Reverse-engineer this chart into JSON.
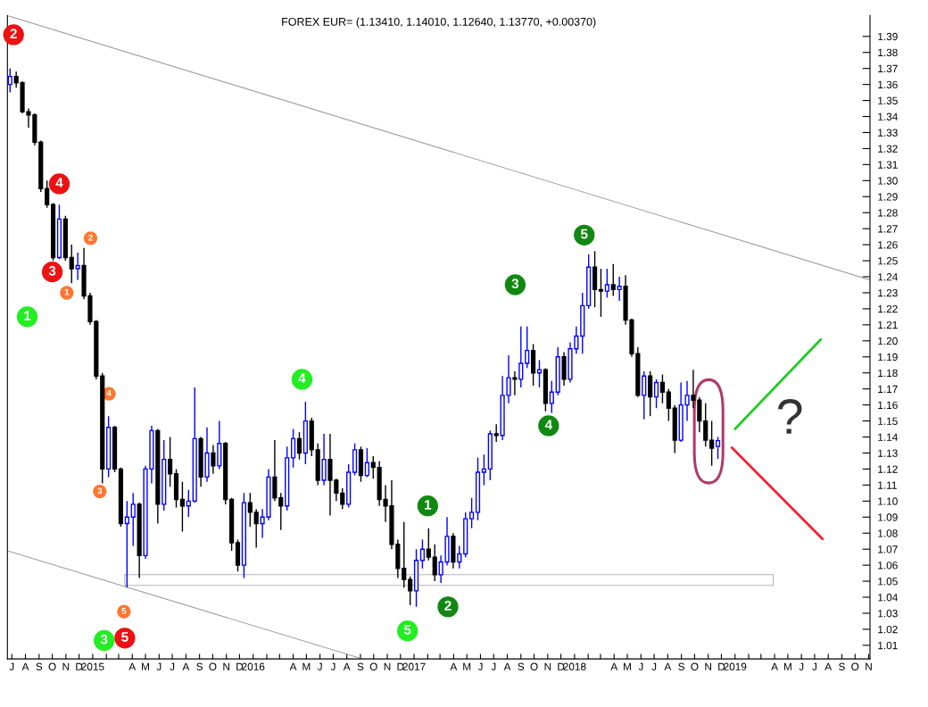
{
  "chart_data": {
    "type": "candlestick",
    "title": "FOREX EUR= (1.13410, 1.14010, 1.12640, 1.13770, +0.00370)",
    "x": [
      "2014-06-27",
      "2014-07-11",
      "2014-07-25",
      "2014-08-08",
      "2014-08-22",
      "2014-09-05",
      "2014-09-19",
      "2014-10-03",
      "2014-10-17",
      "2014-10-31",
      "2014-11-14",
      "2014-11-28",
      "2014-12-12",
      "2014-12-26",
      "2015-01-09",
      "2015-01-23",
      "2015-02-06",
      "2015-02-20",
      "2015-03-06",
      "2015-03-20",
      "2015-04-03",
      "2015-04-17",
      "2015-05-01",
      "2015-05-15",
      "2015-05-29",
      "2015-06-12",
      "2015-06-26",
      "2015-07-10",
      "2015-07-24",
      "2015-08-07",
      "2015-08-21",
      "2015-09-04",
      "2015-09-18",
      "2015-10-02",
      "2015-10-16",
      "2015-10-30",
      "2015-11-13",
      "2015-11-27",
      "2015-12-11",
      "2015-12-25",
      "2016-01-08",
      "2016-01-22",
      "2016-02-05",
      "2016-02-19",
      "2016-03-04",
      "2016-03-18",
      "2016-04-01",
      "2016-04-15",
      "2016-04-29",
      "2016-05-13",
      "2016-05-27",
      "2016-06-10",
      "2016-06-24",
      "2016-07-08",
      "2016-07-22",
      "2016-08-05",
      "2016-08-19",
      "2016-09-02",
      "2016-09-16",
      "2016-09-30",
      "2016-10-14",
      "2016-10-28",
      "2016-11-11",
      "2016-11-25",
      "2016-12-09",
      "2016-12-23",
      "2017-01-06",
      "2017-01-20",
      "2017-02-03",
      "2017-02-17",
      "2017-03-03",
      "2017-03-17",
      "2017-03-31",
      "2017-04-14",
      "2017-04-28",
      "2017-05-12",
      "2017-05-26",
      "2017-06-09",
      "2017-06-23",
      "2017-07-07",
      "2017-07-21",
      "2017-08-04",
      "2017-08-18",
      "2017-09-01",
      "2017-09-15",
      "2017-09-29",
      "2017-10-13",
      "2017-10-27",
      "2017-11-10",
      "2017-11-24",
      "2017-12-08",
      "2017-12-22",
      "2018-01-05",
      "2018-01-19",
      "2018-02-02",
      "2018-02-16",
      "2018-03-02",
      "2018-03-16",
      "2018-03-30",
      "2018-04-13",
      "2018-04-27",
      "2018-05-11",
      "2018-05-25",
      "2018-06-08",
      "2018-06-22",
      "2018-07-06",
      "2018-07-20",
      "2018-08-03",
      "2018-08-17",
      "2018-08-31",
      "2018-09-14",
      "2018-09-28",
      "2018-10-12",
      "2018-10-26",
      "2018-11-09",
      "2018-11-23"
    ],
    "ohlc": [
      [
        1.36,
        1.37,
        1.355,
        1.365
      ],
      [
        1.365,
        1.368,
        1.358,
        1.361
      ],
      [
        1.361,
        1.362,
        1.342,
        1.343
      ],
      [
        1.343,
        1.345,
        1.333,
        1.341
      ],
      [
        1.341,
        1.342,
        1.322,
        1.324
      ],
      [
        1.324,
        1.325,
        1.293,
        1.295
      ],
      [
        1.295,
        1.3,
        1.283,
        1.285
      ],
      [
        1.285,
        1.286,
        1.25,
        1.252
      ],
      [
        1.252,
        1.285,
        1.251,
        1.276
      ],
      [
        1.276,
        1.278,
        1.25,
        1.252
      ],
      [
        1.252,
        1.26,
        1.236,
        1.245
      ],
      [
        1.245,
        1.255,
        1.238,
        1.247
      ],
      [
        1.247,
        1.258,
        1.226,
        1.228
      ],
      [
        1.228,
        1.23,
        1.21,
        1.212
      ],
      [
        1.212,
        1.213,
        1.176,
        1.178
      ],
      [
        1.178,
        1.18,
        1.111,
        1.12
      ],
      [
        1.12,
        1.153,
        1.115,
        1.146
      ],
      [
        1.146,
        1.147,
        1.118,
        1.12
      ],
      [
        1.12,
        1.121,
        1.084,
        1.086
      ],
      [
        1.086,
        1.1,
        1.046,
        1.09
      ],
      [
        1.09,
        1.105,
        1.072,
        1.098
      ],
      [
        1.098,
        1.099,
        1.052,
        1.066
      ],
      [
        1.066,
        1.122,
        1.064,
        1.12
      ],
      [
        1.12,
        1.147,
        1.111,
        1.144
      ],
      [
        1.144,
        1.145,
        1.086,
        1.098
      ],
      [
        1.098,
        1.138,
        1.094,
        1.126
      ],
      [
        1.126,
        1.14,
        1.109,
        1.117
      ],
      [
        1.117,
        1.12,
        1.096,
        1.101
      ],
      [
        1.101,
        1.112,
        1.081,
        1.097
      ],
      [
        1.097,
        1.107,
        1.09,
        1.1
      ],
      [
        1.1,
        1.171,
        1.099,
        1.139
      ],
      [
        1.139,
        1.14,
        1.109,
        1.115
      ],
      [
        1.115,
        1.146,
        1.112,
        1.13
      ],
      [
        1.13,
        1.135,
        1.117,
        1.122
      ],
      [
        1.122,
        1.15,
        1.12,
        1.136
      ],
      [
        1.136,
        1.137,
        1.098,
        1.101
      ],
      [
        1.101,
        1.102,
        1.069,
        1.074
      ],
      [
        1.074,
        1.076,
        1.056,
        1.06
      ],
      [
        1.06,
        1.105,
        1.052,
        1.099
      ],
      [
        1.099,
        1.105,
        1.084,
        1.093
      ],
      [
        1.093,
        1.095,
        1.071,
        1.086
      ],
      [
        1.086,
        1.095,
        1.077,
        1.09
      ],
      [
        1.09,
        1.12,
        1.088,
        1.115
      ],
      [
        1.115,
        1.138,
        1.1,
        1.102
      ],
      [
        1.102,
        1.105,
        1.082,
        1.097
      ],
      [
        1.097,
        1.134,
        1.094,
        1.127
      ],
      [
        1.127,
        1.145,
        1.121,
        1.139
      ],
      [
        1.139,
        1.143,
        1.126,
        1.13
      ],
      [
        1.13,
        1.162,
        1.123,
        1.15
      ],
      [
        1.15,
        1.152,
        1.128,
        1.132
      ],
      [
        1.132,
        1.136,
        1.11,
        1.113
      ],
      [
        1.113,
        1.142,
        1.11,
        1.126
      ],
      [
        1.126,
        1.142,
        1.091,
        1.113
      ],
      [
        1.113,
        1.114,
        1.1,
        1.105
      ],
      [
        1.105,
        1.108,
        1.095,
        1.098
      ],
      [
        1.098,
        1.123,
        1.096,
        1.118
      ],
      [
        1.118,
        1.136,
        1.116,
        1.132
      ],
      [
        1.132,
        1.134,
        1.112,
        1.116
      ],
      [
        1.116,
        1.133,
        1.115,
        1.124
      ],
      [
        1.124,
        1.128,
        1.114,
        1.121
      ],
      [
        1.121,
        1.125,
        1.097,
        1.101
      ],
      [
        1.101,
        1.11,
        1.087,
        1.097
      ],
      [
        1.097,
        1.113,
        1.07,
        1.073
      ],
      [
        1.073,
        1.076,
        1.052,
        1.058
      ],
      [
        1.058,
        1.087,
        1.046,
        1.051
      ],
      [
        1.051,
        1.053,
        1.035,
        1.044
      ],
      [
        1.044,
        1.07,
        1.034,
        1.063
      ],
      [
        1.063,
        1.076,
        1.058,
        1.07
      ],
      [
        1.07,
        1.083,
        1.063,
        1.065
      ],
      [
        1.065,
        1.073,
        1.05,
        1.054
      ],
      [
        1.054,
        1.066,
        1.049,
        1.062
      ],
      [
        1.062,
        1.09,
        1.06,
        1.078
      ],
      [
        1.078,
        1.08,
        1.058,
        1.062
      ],
      [
        1.062,
        1.072,
        1.058,
        1.067
      ],
      [
        1.067,
        1.093,
        1.065,
        1.089
      ],
      [
        1.089,
        1.102,
        1.083,
        1.093
      ],
      [
        1.093,
        1.127,
        1.088,
        1.118
      ],
      [
        1.118,
        1.129,
        1.11,
        1.12
      ],
      [
        1.12,
        1.144,
        1.113,
        1.142
      ],
      [
        1.142,
        1.148,
        1.137,
        1.141
      ],
      [
        1.141,
        1.178,
        1.138,
        1.166
      ],
      [
        1.166,
        1.191,
        1.161,
        1.177
      ],
      [
        1.177,
        1.181,
        1.166,
        1.176
      ],
      [
        1.176,
        1.209,
        1.171,
        1.186
      ],
      [
        1.186,
        1.209,
        1.183,
        1.194
      ],
      [
        1.194,
        1.198,
        1.172,
        1.18
      ],
      [
        1.18,
        1.188,
        1.171,
        1.182
      ],
      [
        1.182,
        1.183,
        1.156,
        1.161
      ],
      [
        1.161,
        1.175,
        1.155,
        1.168
      ],
      [
        1.168,
        1.196,
        1.166,
        1.19
      ],
      [
        1.19,
        1.193,
        1.172,
        1.176
      ],
      [
        1.176,
        1.199,
        1.174,
        1.195
      ],
      [
        1.195,
        1.209,
        1.192,
        1.203
      ],
      [
        1.203,
        1.23,
        1.192,
        1.222
      ],
      [
        1.222,
        1.254,
        1.22,
        1.246
      ],
      [
        1.246,
        1.256,
        1.221,
        1.232
      ],
      [
        1.232,
        1.245,
        1.215,
        1.231
      ],
      [
        1.231,
        1.245,
        1.227,
        1.235
      ],
      [
        1.235,
        1.248,
        1.228,
        1.232
      ],
      [
        1.232,
        1.24,
        1.225,
        1.234
      ],
      [
        1.234,
        1.241,
        1.21,
        1.213
      ],
      [
        1.213,
        1.214,
        1.19,
        1.192
      ],
      [
        1.192,
        1.196,
        1.165,
        1.166
      ],
      [
        1.166,
        1.181,
        1.151,
        1.178
      ],
      [
        1.178,
        1.181,
        1.153,
        1.165
      ],
      [
        1.165,
        1.176,
        1.158,
        1.174
      ],
      [
        1.174,
        1.179,
        1.161,
        1.168
      ],
      [
        1.168,
        1.17,
        1.15,
        1.158
      ],
      [
        1.158,
        1.16,
        1.13,
        1.138
      ],
      [
        1.138,
        1.174,
        1.137,
        1.16
      ],
      [
        1.16,
        1.175,
        1.15,
        1.166
      ],
      [
        1.166,
        1.182,
        1.158,
        1.163
      ],
      [
        1.163,
        1.165,
        1.143,
        1.15
      ],
      [
        1.15,
        1.161,
        1.134,
        1.138
      ],
      [
        1.138,
        1.15,
        1.122,
        1.133
      ],
      [
        1.1341,
        1.1401,
        1.1264,
        1.1377
      ]
    ],
    "series": [
      {
        "type": "line",
        "color": "#a0a0a0",
        "x": [
          "2014-06-21",
          "2019-11-04"
        ],
        "values": [
          1.403,
          1.238
        ]
      },
      {
        "type": "line",
        "color": "#a0a0a0",
        "x": [
          "2014-06-21",
          "2016-09-05"
        ],
        "values": [
          1.069,
          1.0016
        ]
      },
      {
        "type": "line",
        "color": "#b4b4b4",
        "x": [
          "2015-03-15",
          "2019-03-29"
        ],
        "values": [
          1.0541,
          1.0541
        ]
      },
      {
        "type": "line",
        "color": "#b4b4b4",
        "x": [
          "2015-03-15",
          "2019-03-29"
        ],
        "values": [
          1.0474,
          1.0474
        ]
      },
      {
        "type": "line",
        "color": "#22cc22",
        "x": [
          "2019-01-01",
          "2019-07-15"
        ],
        "values": [
          1.145,
          1.2009
        ]
      },
      {
        "type": "line",
        "color": "#ee2233",
        "x": [
          "2018-12-25",
          "2019-07-19"
        ],
        "values": [
          1.1333,
          1.0764
        ]
      }
    ],
    "annotations": [
      {
        "text": "2",
        "x": "2014-07-05",
        "y": 1.391
      },
      {
        "text": "4",
        "x": "2014-10-17",
        "y": 1.298
      },
      {
        "text": "3",
        "x": "2014-10-01",
        "y": 1.243
      },
      {
        "text": "2",
        "x": "2014-12-27",
        "y": 1.264
      },
      {
        "text": "1",
        "x": "2014-11-03",
        "y": 1.23
      },
      {
        "text": "1",
        "x": "2014-08-05",
        "y": 1.215
      },
      {
        "text": "4",
        "x": "2015-02-07",
        "y": 1.167
      },
      {
        "text": "3",
        "x": "2015-01-17",
        "y": 1.106
      },
      {
        "text": "5",
        "x": "2015-03-13",
        "y": 1.031
      },
      {
        "text": "3",
        "x": "2015-01-27",
        "y": 1.013
      },
      {
        "text": "5",
        "x": "2015-03-15",
        "y": 1.0145
      },
      {
        "text": "4",
        "x": "2016-04-21",
        "y": 1.176
      },
      {
        "text": "5",
        "x": "2016-12-17",
        "y": 1.019
      },
      {
        "text": "1",
        "x": "2017-02-01",
        "y": 1.097
      },
      {
        "text": "2",
        "x": "2017-03-19",
        "y": 1.034
      },
      {
        "text": "3",
        "x": "2017-08-19",
        "y": 1.235
      },
      {
        "text": "4",
        "x": "2017-11-03",
        "y": 1.147
      },
      {
        "text": "5",
        "x": "2018-01-23",
        "y": 1.266
      },
      "?"
    ],
    "xlim": [
      "2014-06-21",
      "2019-11-04"
    ],
    "xticks": [
      {
        "value": "2014-07-01",
        "label": "J"
      },
      {
        "value": "2014-08-01",
        "label": "A"
      },
      {
        "value": "2014-09-01",
        "label": "S"
      },
      {
        "value": "2014-10-01",
        "label": "O"
      },
      {
        "value": "2014-11-01",
        "label": "N"
      },
      {
        "value": "2014-12-01",
        "label": "D"
      },
      {
        "value": "2015-01-01",
        "label": "2015"
      },
      {
        "value": "2015-02-01",
        "label": null
      },
      {
        "value": "2015-03-01",
        "label": null
      },
      {
        "value": "2015-04-01",
        "label": "A"
      },
      {
        "value": "2015-05-01",
        "label": "M"
      },
      {
        "value": "2015-06-01",
        "label": "J"
      },
      {
        "value": "2015-07-01",
        "label": "J"
      },
      {
        "value": "2015-08-01",
        "label": "A"
      },
      {
        "value": "2015-09-01",
        "label": "S"
      },
      {
        "value": "2015-10-01",
        "label": "O"
      },
      {
        "value": "2015-11-01",
        "label": "N"
      },
      {
        "value": "2015-12-01",
        "label": "D"
      },
      {
        "value": "2016-01-01",
        "label": "2016"
      },
      {
        "value": "2016-02-01",
        "label": null
      },
      {
        "value": "2016-03-01",
        "label": null
      },
      {
        "value": "2016-04-01",
        "label": "A"
      },
      {
        "value": "2016-05-01",
        "label": "M"
      },
      {
        "value": "2016-06-01",
        "label": "J"
      },
      {
        "value": "2016-07-01",
        "label": "J"
      },
      {
        "value": "2016-08-01",
        "label": "A"
      },
      {
        "value": "2016-09-01",
        "label": "S"
      },
      {
        "value": "2016-10-01",
        "label": "O"
      },
      {
        "value": "2016-11-01",
        "label": "N"
      },
      {
        "value": "2016-12-01",
        "label": "D"
      },
      {
        "value": "2017-01-01",
        "label": "2017"
      },
      {
        "value": "2017-02-01",
        "label": null
      },
      {
        "value": "2017-03-01",
        "label": null
      },
      {
        "value": "2017-04-01",
        "label": "A"
      },
      {
        "value": "2017-05-01",
        "label": "M"
      },
      {
        "value": "2017-06-01",
        "label": "J"
      },
      {
        "value": "2017-07-01",
        "label": "J"
      },
      {
        "value": "2017-08-01",
        "label": "A"
      },
      {
        "value": "2017-09-01",
        "label": "S"
      },
      {
        "value": "2017-10-01",
        "label": "O"
      },
      {
        "value": "2017-11-01",
        "label": "N"
      },
      {
        "value": "2017-12-01",
        "label": "D"
      },
      {
        "value": "2018-01-01",
        "label": "2018"
      },
      {
        "value": "2018-02-01",
        "label": null
      },
      {
        "value": "2018-03-01",
        "label": null
      },
      {
        "value": "2018-04-01",
        "label": "A"
      },
      {
        "value": "2018-05-01",
        "label": "M"
      },
      {
        "value": "2018-06-01",
        "label": "J"
      },
      {
        "value": "2018-07-01",
        "label": "J"
      },
      {
        "value": "2018-08-01",
        "label": "A"
      },
      {
        "value": "2018-09-01",
        "label": "S"
      },
      {
        "value": "2018-10-01",
        "label": "O"
      },
      {
        "value": "2018-11-01",
        "label": "N"
      },
      {
        "value": "2018-12-01",
        "label": "D"
      },
      {
        "value": "2019-01-01",
        "label": "2019"
      },
      {
        "value": "2019-02-01",
        "label": null
      },
      {
        "value": "2019-03-01",
        "label": null
      },
      {
        "value": "2019-04-01",
        "label": "A"
      },
      {
        "value": "2019-05-01",
        "label": "M"
      },
      {
        "value": "2019-06-01",
        "label": "J"
      },
      {
        "value": "2019-07-01",
        "label": "J"
      },
      {
        "value": "2019-08-01",
        "label": "A"
      },
      {
        "value": "2019-09-01",
        "label": "S"
      },
      {
        "value": "2019-10-01",
        "label": "O"
      },
      {
        "value": "2019-11-01",
        "label": "N"
      }
    ],
    "ylim": [
      1.0015,
      1.403
    ],
    "yticks": [
      1.01,
      1.02,
      1.03,
      1.04,
      1.05,
      1.06,
      1.07,
      1.08,
      1.09,
      {
        "value": 1.1,
        "label": "1.10"
      },
      1.11,
      1.12,
      1.13,
      1.14,
      1.15,
      1.16,
      1.17,
      1.18,
      1.19,
      {
        "value": 1.2,
        "label": "1.20"
      },
      1.21,
      1.22,
      1.23,
      1.24,
      1.25,
      1.26,
      1.27,
      1.28,
      1.29,
      {
        "value": 1.3,
        "label": "1.30"
      },
      1.31,
      1.32,
      1.33,
      1.34,
      1.35,
      1.36,
      1.37,
      1.38,
      1.39
    ],
    "grid": false,
    "legend": false
  }
}
